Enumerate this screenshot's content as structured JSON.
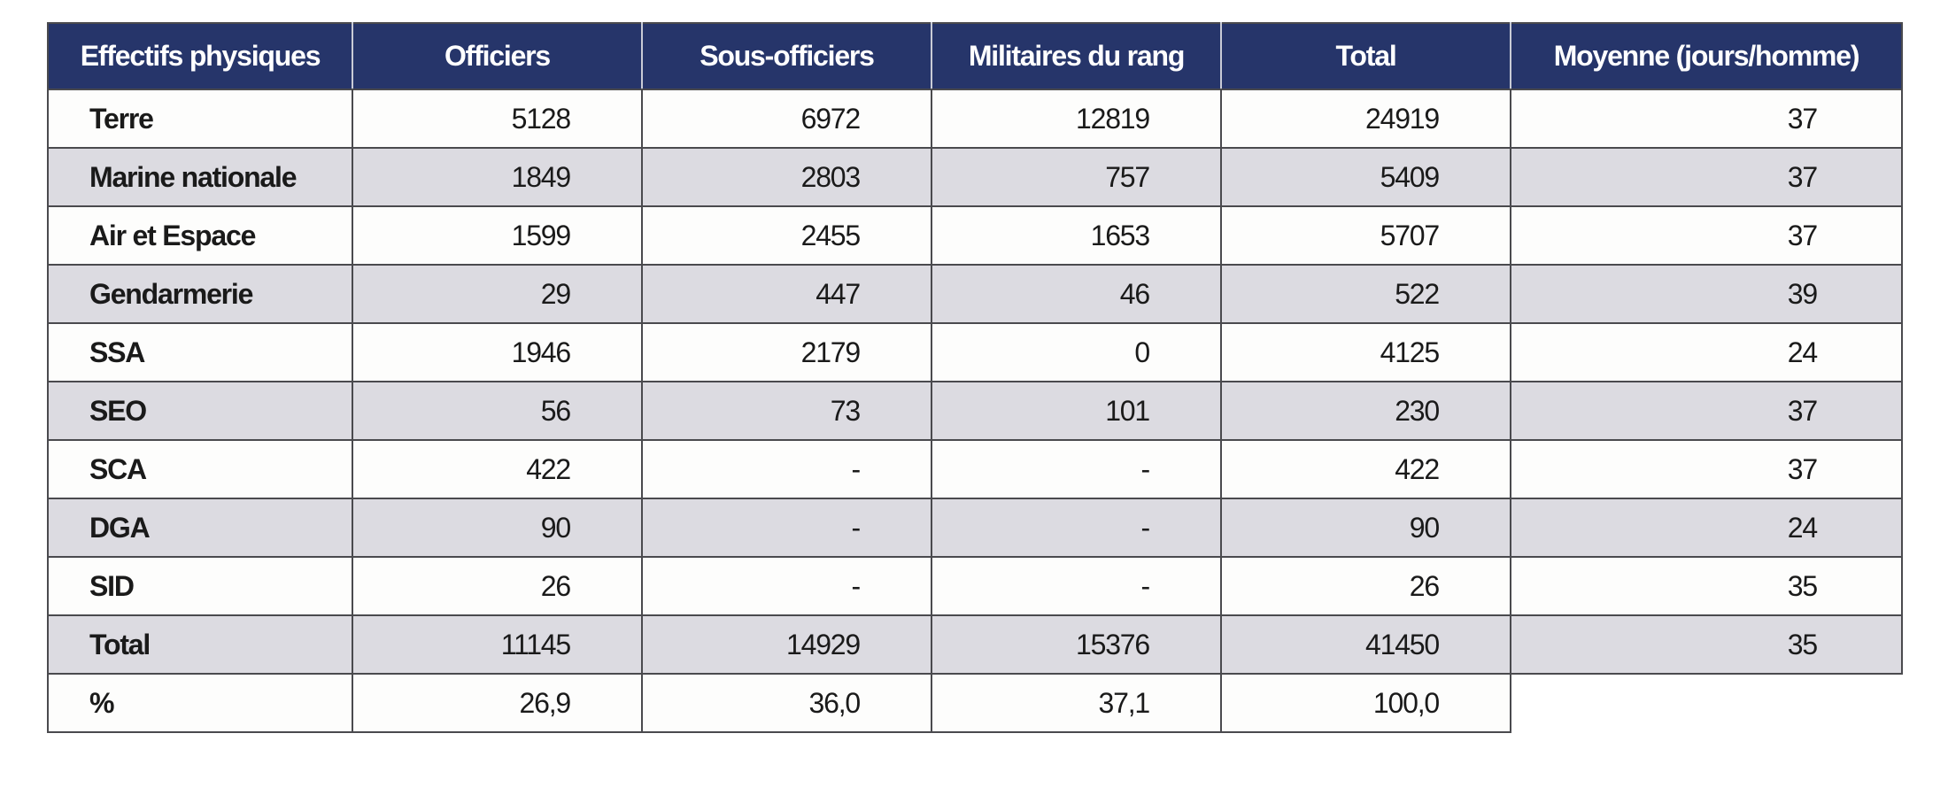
{
  "table": {
    "headers": [
      "Effectifs physiques",
      "Officiers",
      "Sous-officiers",
      "Militaires du rang",
      "Total",
      "Moyenne (jours/homme)"
    ],
    "rows": [
      [
        "Terre",
        "5128",
        "6972",
        "12819",
        "24919",
        "37"
      ],
      [
        "Marine nationale",
        "1849",
        "2803",
        "757",
        "5409",
        "37"
      ],
      [
        "Air et Espace",
        "1599",
        "2455",
        "1653",
        "5707",
        "37"
      ],
      [
        "Gendarmerie",
        "29",
        "447",
        "46",
        "522",
        "39"
      ],
      [
        "SSA",
        "1946",
        "2179",
        "0",
        "4125",
        "24"
      ],
      [
        "SEO",
        "56",
        "73",
        "101",
        "230",
        "37"
      ],
      [
        "SCA",
        "422",
        "-",
        "-",
        "422",
        "37"
      ],
      [
        "DGA",
        "90",
        "-",
        "-",
        "90",
        "24"
      ],
      [
        "SID",
        "26",
        "-",
        "-",
        "26",
        "35"
      ],
      [
        "Total",
        "11145",
        "14929",
        "15376",
        "41450",
        "35"
      ],
      [
        "%",
        "26,9",
        "36,0",
        "37,1",
        "100,0",
        ""
      ]
    ]
  },
  "colors": {
    "header_bg": "#26356a",
    "row_alt": "#dcdbe1",
    "row": "#fdfdfc"
  }
}
